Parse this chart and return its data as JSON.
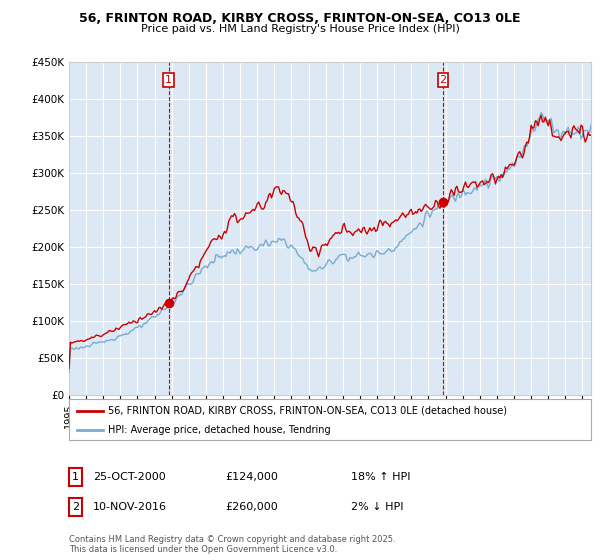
{
  "title1": "56, FRINTON ROAD, KIRBY CROSS, FRINTON-ON-SEA, CO13 0LE",
  "title2": "Price paid vs. HM Land Registry's House Price Index (HPI)",
  "legend_line1": "56, FRINTON ROAD, KIRBY CROSS, FRINTON-ON-SEA, CO13 0LE (detached house)",
  "legend_line2": "HPI: Average price, detached house, Tendring",
  "transaction1_date": "25-OCT-2000",
  "transaction1_price": "£124,000",
  "transaction1_hpi": "18% ↑ HPI",
  "transaction2_date": "10-NOV-2016",
  "transaction2_price": "£260,000",
  "transaction2_hpi": "2% ↓ HPI",
  "footer": "Contains HM Land Registry data © Crown copyright and database right 2025.\nThis data is licensed under the Open Government Licence v3.0.",
  "transaction1_year": 2000.82,
  "transaction2_year": 2016.86,
  "transaction1_value": 124000,
  "transaction2_value": 260000,
  "hpi_color": "#7aabce",
  "price_color": "#cc0000",
  "vline_color": "#cc0000",
  "dot_color": "#cc0000",
  "ylim_min": 0,
  "ylim_max": 450000,
  "chart_bg_color": "#dce9f5",
  "background_color": "#ffffff",
  "grid_color": "#ffffff"
}
